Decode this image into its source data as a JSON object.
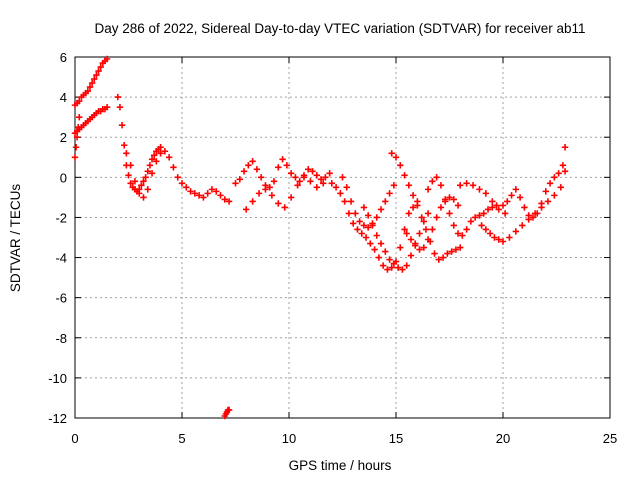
{
  "chart_data": {
    "type": "scatter",
    "title": "Day 286 of 2022, Sidereal Day-to-day VTEC variation (SDTVAR) for receiver ab11",
    "xlabel": "GPS time / hours",
    "ylabel": "SDTVAR / TECUs",
    "xlim": [
      0,
      25
    ],
    "ylim": [
      -12,
      6
    ],
    "xticks": [
      0,
      5,
      10,
      15,
      20,
      25
    ],
    "yticks": [
      -12,
      -10,
      -8,
      -6,
      -4,
      -2,
      0,
      2,
      4,
      6
    ],
    "grid": true,
    "marker": "+",
    "color": "#ff0000",
    "series": [
      {
        "name": "SDTVAR",
        "x": [
          0.0,
          0.1,
          0.2,
          0.3,
          0.4,
          0.5,
          0.6,
          0.7,
          0.8,
          0.9,
          1.0,
          1.1,
          1.2,
          1.3,
          1.4,
          1.5,
          0.0,
          0.1,
          0.2,
          0.3,
          0.4,
          0.5,
          0.6,
          0.7,
          0.8,
          0.9,
          1.0,
          1.1,
          1.2,
          1.3,
          1.4,
          1.5,
          0.0,
          0.05,
          0.1,
          0.15,
          0.2,
          2.0,
          2.1,
          2.2,
          2.3,
          2.4,
          2.5,
          2.6,
          2.7,
          2.8,
          2.9,
          3.0,
          3.1,
          3.2,
          3.3,
          3.4,
          3.5,
          3.6,
          3.7,
          3.8,
          3.9,
          4.0,
          4.2,
          4.4,
          4.6,
          4.8,
          5.0,
          5.2,
          5.4,
          5.6,
          5.8,
          6.0,
          6.2,
          6.4,
          6.6,
          6.8,
          7.0,
          7.2,
          2.4,
          2.6,
          2.8,
          3.0,
          3.2,
          3.4,
          3.6,
          3.8,
          4.0,
          7.0,
          7.05,
          7.1,
          7.15,
          7.2,
          7.5,
          7.7,
          7.9,
          8.1,
          8.3,
          8.5,
          8.7,
          8.9,
          9.1,
          9.3,
          9.5,
          9.7,
          9.9,
          10.1,
          10.3,
          10.5,
          10.7,
          10.9,
          11.1,
          11.3,
          11.5,
          11.7,
          11.9,
          8.0,
          8.3,
          8.6,
          8.9,
          9.2,
          9.5,
          9.8,
          10.1,
          10.4,
          10.7,
          11.0,
          11.3,
          11.6,
          12.0,
          12.2,
          12.4,
          12.6,
          12.8,
          13.0,
          13.2,
          13.4,
          13.6,
          13.8,
          14.0,
          14.2,
          14.4,
          14.6,
          14.8,
          15.0,
          15.2,
          15.4,
          15.6,
          15.8,
          16.0,
          12.5,
          12.7,
          12.9,
          13.1,
          13.3,
          13.5,
          13.7,
          13.9,
          14.1,
          14.3,
          14.5,
          14.7,
          14.9,
          13.5,
          13.7,
          13.9,
          14.1,
          14.3,
          14.5,
          14.7,
          14.9,
          15.1,
          15.3,
          15.5,
          15.7,
          15.9,
          16.1,
          16.3,
          16.5,
          14.8,
          15.0,
          15.2,
          15.4,
          15.6,
          15.8,
          16.0,
          16.2,
          16.4,
          16.6,
          16.8,
          17.0,
          17.2,
          17.4,
          17.6,
          17.8,
          18.0,
          15.5,
          15.7,
          15.9,
          16.1,
          16.3,
          16.5,
          16.7,
          16.9,
          17.1,
          17.3,
          17.5,
          17.7,
          17.9,
          16.5,
          16.7,
          16.9,
          17.1,
          17.3,
          17.5,
          17.7,
          17.9,
          18.1,
          18.3,
          18.5,
          18.7,
          18.9,
          19.1,
          19.3,
          19.5,
          19.7,
          18.0,
          18.3,
          18.6,
          18.9,
          19.2,
          19.5,
          19.8,
          20.1,
          19.0,
          19.2,
          19.4,
          19.6,
          19.8,
          20.0,
          20.2,
          20.4,
          20.6,
          20.8,
          21.0,
          21.2,
          21.4,
          21.6,
          21.8,
          22.0,
          22.2,
          22.4,
          22.6,
          22.8,
          22.9,
          20.0,
          20.3,
          20.6,
          20.9,
          21.2,
          21.5,
          21.8,
          22.1,
          22.4,
          22.7,
          22.9
        ],
        "y": [
          3.6,
          3.7,
          3.8,
          4.0,
          4.1,
          4.2,
          4.3,
          4.5,
          4.7,
          4.9,
          5.1,
          5.3,
          5.5,
          5.7,
          5.8,
          5.9,
          2.2,
          2.3,
          2.4,
          2.5,
          2.6,
          2.7,
          2.8,
          2.9,
          3.0,
          3.1,
          3.2,
          3.3,
          3.3,
          3.4,
          3.4,
          3.5,
          1.0,
          1.5,
          2.0,
          2.5,
          3.0,
          4.0,
          3.5,
          2.6,
          1.6,
          0.6,
          0.1,
          -0.3,
          -0.5,
          -0.6,
          -0.7,
          -0.6,
          -0.4,
          -0.2,
          0.0,
          0.3,
          0.6,
          0.9,
          1.1,
          1.3,
          1.4,
          1.5,
          1.3,
          1.0,
          0.5,
          0.0,
          -0.3,
          -0.5,
          -0.7,
          -0.8,
          -0.9,
          -1.0,
          -0.8,
          -0.6,
          -0.7,
          -0.9,
          -1.1,
          -1.2,
          1.2,
          0.6,
          -0.2,
          -0.8,
          -1.0,
          -0.6,
          0.2,
          0.8,
          1.2,
          -11.9,
          -11.8,
          -11.7,
          -11.6,
          -11.6,
          -0.3,
          -0.1,
          0.3,
          0.6,
          0.8,
          0.4,
          0.0,
          -0.4,
          -0.5,
          -0.2,
          0.5,
          0.9,
          0.6,
          0.2,
          0.0,
          -0.2,
          0.1,
          0.4,
          0.3,
          0.1,
          -0.1,
          0.0,
          0.2,
          -1.6,
          -1.2,
          -0.8,
          -0.6,
          -0.9,
          -1.3,
          -1.5,
          -1.0,
          -0.4,
          0.0,
          -0.2,
          -0.5,
          -0.3,
          -0.3,
          -0.5,
          -0.8,
          -1.2,
          -1.8,
          -2.3,
          -2.6,
          -2.8,
          -3.0,
          -3.3,
          -3.6,
          -4.0,
          -4.4,
          -4.6,
          -4.5,
          -4.2,
          -3.5,
          -2.6,
          -1.8,
          -1.5,
          -1.2,
          0.0,
          -0.5,
          -1.2,
          -1.8,
          -2.2,
          -2.4,
          -2.5,
          -2.3,
          -2.0,
          -1.6,
          -1.2,
          -0.8,
          -0.4,
          -1.5,
          -1.9,
          -2.4,
          -2.9,
          -3.3,
          -3.7,
          -4.1,
          -4.3,
          -4.5,
          -4.6,
          -4.4,
          -3.9,
          -3.3,
          -2.8,
          -2.2,
          -1.8,
          1.2,
          1.0,
          0.6,
          0.1,
          -0.4,
          -0.9,
          -1.4,
          -2.0,
          -2.6,
          -3.2,
          -3.8,
          -4.1,
          -4.0,
          -3.8,
          -3.7,
          -3.6,
          -3.5,
          -2.8,
          -3.1,
          -3.4,
          -3.6,
          -3.5,
          -3.1,
          -2.6,
          -2.0,
          -1.5,
          -1.2,
          -1.0,
          -1.1,
          -1.4,
          -0.6,
          -0.2,
          0.0,
          -0.4,
          -1.1,
          -1.8,
          -2.4,
          -2.8,
          -2.9,
          -2.6,
          -2.2,
          -2.0,
          -1.9,
          -1.8,
          -1.6,
          -1.5,
          -1.4,
          -0.4,
          -0.3,
          -0.4,
          -0.6,
          -0.8,
          -1.2,
          -1.6,
          -1.8,
          -2.4,
          -2.6,
          -2.8,
          -3.0,
          -3.1,
          -1.4,
          -1.2,
          -0.9,
          -0.6,
          -1.0,
          -1.5,
          -1.9,
          -2.0,
          -1.8,
          -1.3,
          -0.7,
          -0.3,
          0.0,
          0.2,
          0.6,
          1.5,
          -3.2,
          -3.0,
          -2.7,
          -2.4,
          -2.1,
          -1.8,
          -1.5,
          -1.2,
          -0.9,
          -0.5,
          0.3
        ]
      }
    ]
  }
}
